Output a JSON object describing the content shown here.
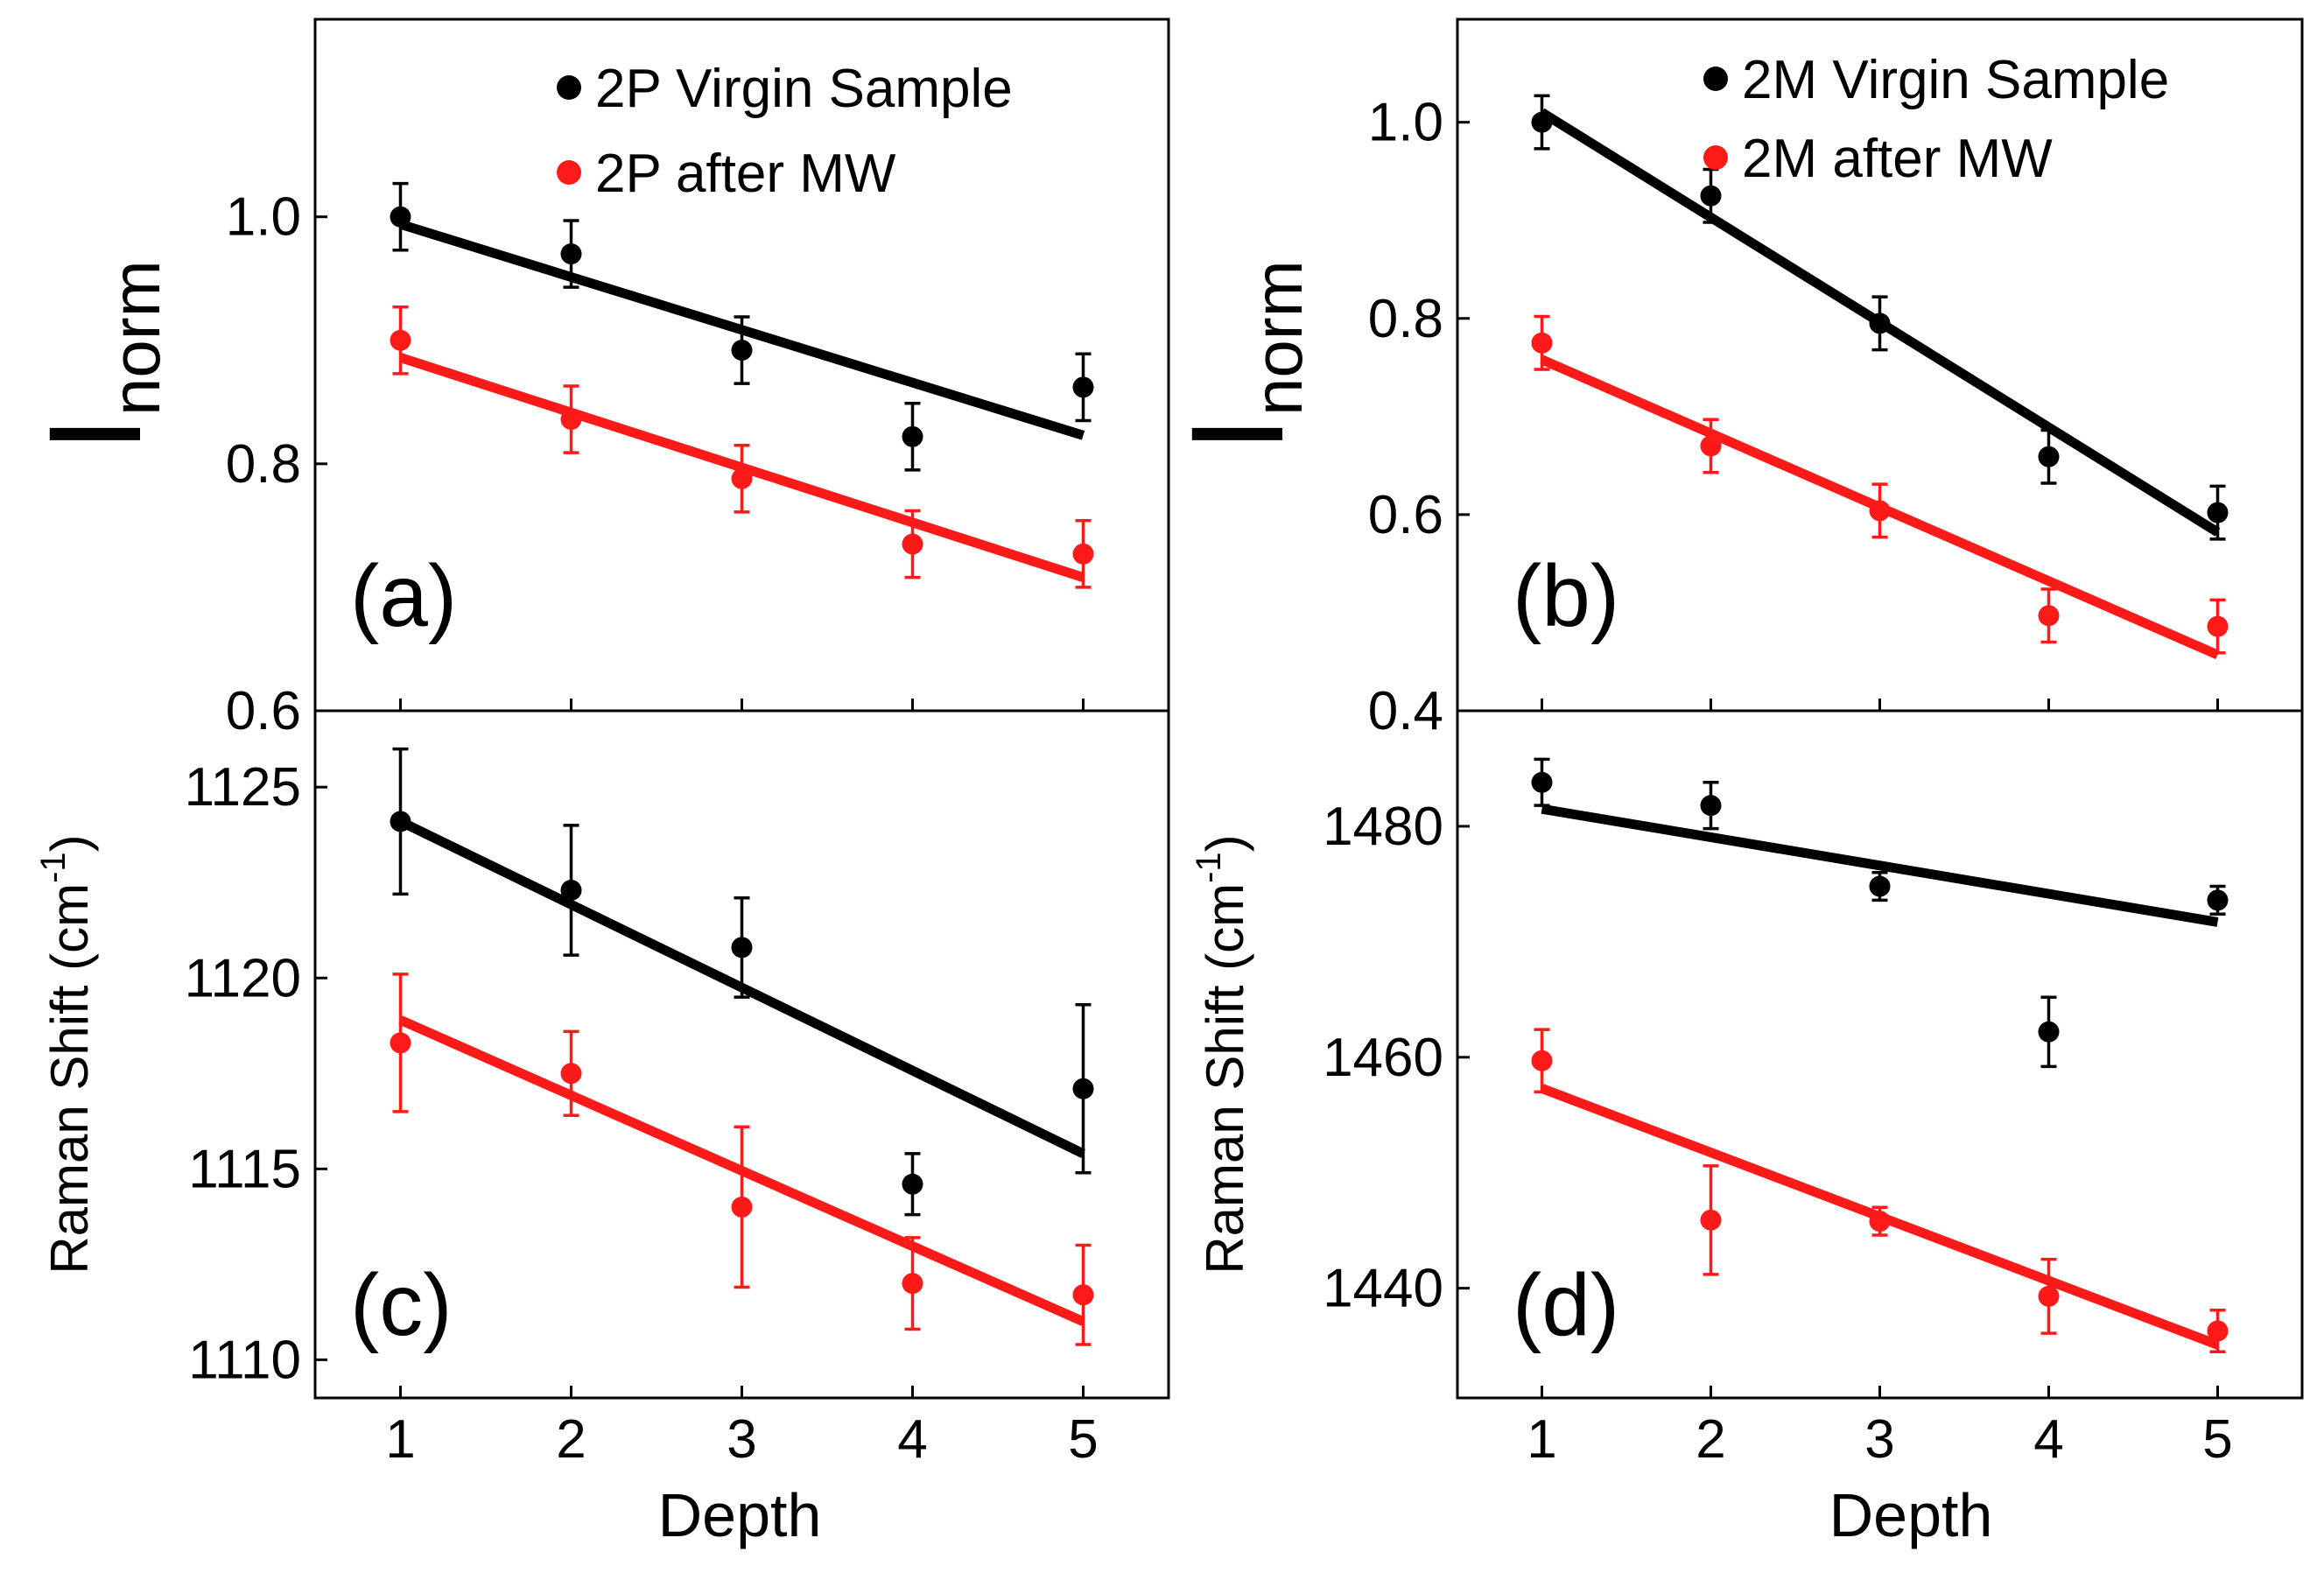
{
  "figure": {
    "x_axis_label": "Depth",
    "x_ticks": [
      "1",
      "2",
      "3",
      "4",
      "5"
    ]
  },
  "chart_data": [
    {
      "id": "a",
      "type": "scatter",
      "panel_label": "(a)",
      "ylabel": {
        "main": "I",
        "sub": "norm"
      },
      "xlabel": "",
      "xlim": [
        0.5,
        5.5
      ],
      "ylim": [
        0.6,
        1.16
      ],
      "yticks": [
        0.6,
        0.8,
        1.0
      ],
      "ytick_labels": [
        "0.6",
        "0.8",
        "1.0"
      ],
      "legend": [
        "2P Virgin Sample",
        "2P after MW"
      ],
      "series": [
        {
          "name": "2P Virgin Sample",
          "color": "#000000",
          "x": [
            1,
            2,
            3,
            4,
            5
          ],
          "values": [
            1.0,
            0.97,
            0.892,
            0.822,
            0.862
          ],
          "errors": [
            0.027,
            0.027,
            0.027,
            0.027,
            0.027
          ],
          "fit": [
            0.994,
            0.823
          ]
        },
        {
          "name": "2P after MW",
          "color": "#ff1a1a",
          "x": [
            1,
            2,
            3,
            4,
            5
          ],
          "values": [
            0.9,
            0.836,
            0.788,
            0.735,
            0.727
          ],
          "errors": [
            0.027,
            0.027,
            0.027,
            0.027,
            0.027
          ],
          "fit": [
            0.886,
            0.708
          ]
        }
      ]
    },
    {
      "id": "b",
      "type": "scatter",
      "panel_label": "(b)",
      "ylabel": {
        "main": "I",
        "sub": "norm"
      },
      "xlabel": "",
      "xlim": [
        0.5,
        5.5
      ],
      "ylim": [
        0.4,
        1.105
      ],
      "yticks": [
        0.4,
        0.6,
        0.8,
        1.0
      ],
      "ytick_labels": [
        "0.4",
        "0.6",
        "0.8",
        "1.0"
      ],
      "legend": [
        "2M Virgin Sample",
        "2M after MW"
      ],
      "series": [
        {
          "name": "2M Virgin Sample",
          "color": "#000000",
          "x": [
            1,
            2,
            3,
            4,
            5
          ],
          "values": [
            1.0,
            0.925,
            0.795,
            0.659,
            0.602
          ],
          "errors": [
            0.027,
            0.027,
            0.027,
            0.027,
            0.027
          ],
          "fit": [
            1.01,
            0.582
          ]
        },
        {
          "name": "2M after MW",
          "color": "#ff1a1a",
          "x": [
            1,
            2,
            3,
            4,
            5
          ],
          "values": [
            0.775,
            0.67,
            0.604,
            0.497,
            0.486
          ],
          "errors": [
            0.027,
            0.027,
            0.027,
            0.027,
            0.027
          ],
          "fit": [
            0.758,
            0.457
          ]
        }
      ]
    },
    {
      "id": "c",
      "type": "scatter",
      "panel_label": "(c)",
      "ylabel": {
        "text": "Raman Shift (cm",
        "sup": "-1",
        "close": ")"
      },
      "xlabel": "Depth",
      "xlim": [
        0.5,
        5.5
      ],
      "ylim": [
        1109.0,
        1127.0
      ],
      "yticks": [
        1110,
        1115,
        1120,
        1125
      ],
      "ytick_labels": [
        "1110",
        "1115",
        "1120",
        "1125"
      ],
      "series": [
        {
          "name": "2P Virgin Sample",
          "color": "#000000",
          "x": [
            1,
            2,
            3,
            4,
            5
          ],
          "values": [
            1124.1,
            1122.3,
            1120.8,
            1114.6,
            1117.1
          ],
          "errors": [
            1.9,
            1.7,
            1.3,
            0.8,
            2.2
          ],
          "fit": [
            1124.1,
            1115.4
          ]
        },
        {
          "name": "2P after MW",
          "color": "#ff1a1a",
          "x": [
            1,
            2,
            3,
            4,
            5
          ],
          "values": [
            1118.3,
            1117.5,
            1114.0,
            1112.0,
            1111.7
          ],
          "errors": [
            1.8,
            1.1,
            2.1,
            1.2,
            1.3
          ],
          "fit": [
            1118.9,
            1111.0
          ]
        }
      ]
    },
    {
      "id": "d",
      "type": "scatter",
      "panel_label": "(d)",
      "ylabel": {
        "text": "Raman Shift (cm",
        "sup": "-1",
        "close": ")"
      },
      "xlabel": "Depth",
      "xlim": [
        0.5,
        5.5
      ],
      "ylim": [
        1430.5,
        1490.0
      ],
      "yticks": [
        1440,
        1460,
        1480
      ],
      "ytick_labels": [
        "1440",
        "1460",
        "1480"
      ],
      "series": [
        {
          "name": "2M Virgin Sample",
          "color": "#000000",
          "x": [
            1,
            2,
            3,
            4,
            5
          ],
          "values": [
            1483.8,
            1481.8,
            1474.8,
            1462.2,
            1473.6
          ],
          "errors": [
            2.0,
            2.0,
            1.2,
            3.0,
            1.2
          ],
          "fit": [
            1481.5,
            1471.7
          ]
        },
        {
          "name": "2M after MW",
          "color": "#ff1a1a",
          "x": [
            1,
            2,
            3,
            4,
            5
          ],
          "values": [
            1459.7,
            1445.9,
            1445.8,
            1439.3,
            1436.3
          ],
          "errors": [
            2.7,
            4.7,
            1.2,
            3.2,
            1.8
          ],
          "fit": [
            1457.3,
            1435.1
          ]
        }
      ]
    }
  ]
}
